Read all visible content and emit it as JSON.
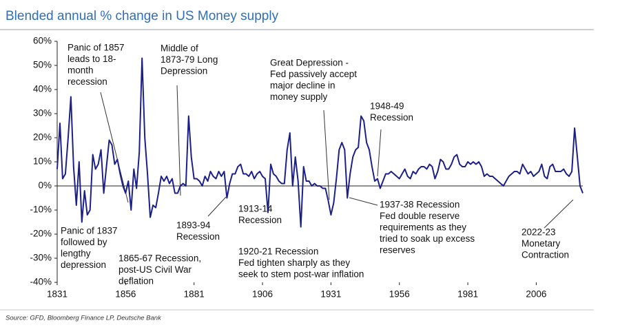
{
  "chart_data": {
    "type": "line",
    "title": "Blended annual % change in US Money supply",
    "source": "Source: GFD, Bloomberg Finance LP, Deutsche Bank",
    "x": [
      1831,
      1832,
      1833,
      1834,
      1835,
      1836,
      1837,
      1838,
      1839,
      1840,
      1841,
      1842,
      1843,
      1844,
      1845,
      1846,
      1847,
      1848,
      1849,
      1850,
      1851,
      1852,
      1853,
      1854,
      1855,
      1856,
      1857,
      1858,
      1859,
      1860,
      1861,
      1862,
      1863,
      1864,
      1865,
      1866,
      1867,
      1868,
      1869,
      1870,
      1871,
      1872,
      1873,
      1874,
      1875,
      1876,
      1877,
      1878,
      1879,
      1880,
      1881,
      1882,
      1883,
      1884,
      1885,
      1886,
      1887,
      1888,
      1889,
      1890,
      1891,
      1892,
      1893,
      1894,
      1895,
      1896,
      1897,
      1898,
      1899,
      1900,
      1901,
      1902,
      1903,
      1904,
      1905,
      1906,
      1907,
      1908,
      1909,
      1910,
      1911,
      1912,
      1913,
      1914,
      1915,
      1916,
      1917,
      1918,
      1919,
      1920,
      1921,
      1922,
      1923,
      1924,
      1925,
      1926,
      1927,
      1928,
      1929,
      1930,
      1931,
      1932,
      1933,
      1934,
      1935,
      1936,
      1937,
      1938,
      1939,
      1940,
      1941,
      1942,
      1943,
      1944,
      1945,
      1946,
      1947,
      1948,
      1949,
      1950,
      1951,
      1952,
      1953,
      1954,
      1955,
      1956,
      1957,
      1958,
      1959,
      1960,
      1961,
      1962,
      1963,
      1964,
      1965,
      1966,
      1967,
      1968,
      1969,
      1970,
      1971,
      1972,
      1973,
      1974,
      1975,
      1976,
      1977,
      1978,
      1979,
      1980,
      1981,
      1982,
      1983,
      1984,
      1985,
      1986,
      1987,
      1988,
      1989,
      1990,
      1991,
      1992,
      1993,
      1994,
      1995,
      1996,
      1997,
      1998,
      1999,
      2000,
      2001,
      2002,
      2003,
      2004,
      2005,
      2006,
      2007,
      2008,
      2009,
      2010,
      2011,
      2012,
      2013,
      2014,
      2015,
      2016,
      2017,
      2018,
      2019,
      2020,
      2021,
      2022,
      2023
    ],
    "series": [
      {
        "name": "Blended annual % change",
        "color": "#1b1f8a",
        "values": [
          7,
          26,
          3,
          5,
          20,
          37,
          8,
          -8,
          10,
          -15,
          -2,
          -12,
          -10,
          13,
          7,
          9,
          15,
          -3,
          8,
          19,
          17,
          9,
          11,
          5,
          0,
          -3,
          2,
          -10,
          7,
          -1,
          14,
          53,
          20,
          5,
          -13,
          -8,
          -9,
          -3,
          4,
          2,
          4,
          1,
          3,
          -3,
          -3,
          0,
          1,
          0,
          29,
          12,
          3,
          3,
          2,
          0,
          4,
          2,
          6,
          4,
          3,
          6,
          4,
          6,
          -5,
          1,
          5,
          5,
          8,
          9,
          5,
          5,
          4,
          6,
          3,
          5,
          6,
          4,
          3,
          -11,
          9,
          5,
          4,
          2,
          1,
          1,
          15,
          22,
          0,
          12,
          2,
          -17,
          8,
          2,
          2,
          0,
          1,
          0,
          0,
          -1,
          -1,
          -6,
          -12,
          -7,
          3,
          15,
          18,
          15,
          -5,
          5,
          12,
          15,
          16,
          29,
          27,
          18,
          15,
          8,
          2,
          3,
          -1,
          2,
          5,
          5,
          6,
          5,
          4,
          3,
          5,
          7,
          4,
          3,
          6,
          5,
          7,
          8,
          8,
          7,
          9,
          8,
          3,
          6,
          11,
          10,
          7,
          7,
          9,
          12,
          13,
          9,
          8,
          8,
          10,
          9,
          10,
          9,
          10,
          8,
          4,
          5,
          4,
          4,
          3,
          2,
          1,
          0,
          2,
          4,
          5,
          6,
          6,
          5,
          9,
          7,
          5,
          6,
          4,
          5,
          6,
          9,
          4,
          3,
          8,
          9,
          6,
          6,
          6,
          7,
          5,
          4,
          6,
          24,
          12,
          0,
          -3
        ]
      }
    ],
    "xlim": [
      1831,
      2023
    ],
    "xticks": [
      1831,
      1856,
      1881,
      1906,
      1931,
      1956,
      1981,
      2006
    ],
    "ylim": [
      -40,
      60
    ],
    "yticks": [
      {
        "value": -40,
        "label": "-40%"
      },
      {
        "value": -30,
        "label": "-30%"
      },
      {
        "value": -20,
        "label": "-20%"
      },
      {
        "value": -10,
        "label": "-10%"
      },
      {
        "value": 0,
        "label": "0%"
      },
      {
        "value": 10,
        "label": "10%"
      },
      {
        "value": 20,
        "label": "20%"
      },
      {
        "value": 30,
        "label": "30%"
      },
      {
        "value": 40,
        "label": "40%"
      },
      {
        "value": 50,
        "label": "50%"
      },
      {
        "value": 60,
        "label": "60%"
      }
    ],
    "annotations": [
      {
        "lines": [
          "Panic of 1857",
          "leads to 18-",
          "month",
          "recession"
        ]
      },
      {
        "lines": [
          "Middle of",
          "1873-79 Long",
          "Depression"
        ]
      },
      {
        "lines": [
          "Great Depression -",
          "Fed passively accept",
          "major decline in",
          "money supply"
        ]
      },
      {
        "lines": [
          "1948-49",
          "Recession"
        ]
      },
      {
        "lines": [
          "Panic of 1837",
          "followed by",
          "lengthy",
          "depression"
        ]
      },
      {
        "lines": [
          "1865-67 Recession,",
          "post-US Civil War",
          "deflation"
        ]
      },
      {
        "lines": [
          "1893-94",
          "Recession"
        ]
      },
      {
        "lines": [
          "1913-14",
          "Recession"
        ]
      },
      {
        "lines": [
          "1920-21 Recession",
          "Fed tighten sharply as they",
          "seek to stem post-war inflation"
        ]
      },
      {
        "lines": [
          "1937-38 Recession",
          "Fed double reserve",
          "requirements as they",
          "tried to soak up excess",
          "reserves"
        ]
      },
      {
        "lines": [
          "2022-23",
          "Monetary",
          "Contraction"
        ]
      }
    ]
  }
}
